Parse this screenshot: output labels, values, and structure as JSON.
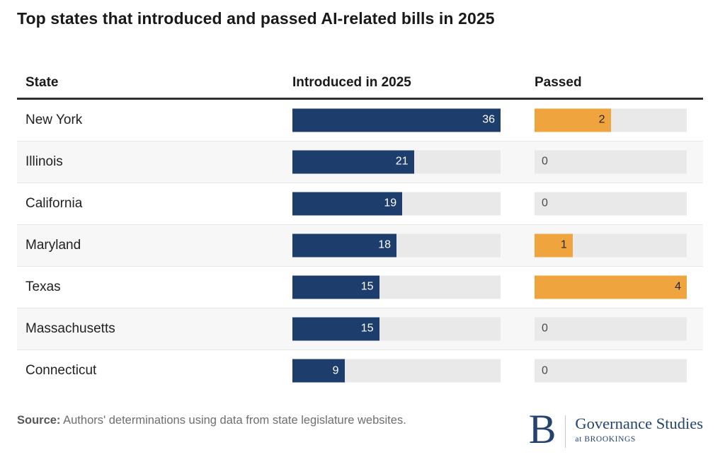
{
  "title": "Top states that introduced and passed AI-related bills in 2025",
  "table": {
    "headers": {
      "state": "State",
      "introduced": "Introduced in 2025",
      "passed": "Passed"
    }
  },
  "chart_data": {
    "type": "bar",
    "title": "Top states that introduced and passed AI-related bills in 2025",
    "categories": [
      "New York",
      "Illinois",
      "California",
      "Maryland",
      "Texas",
      "Massachusetts",
      "Connecticut"
    ],
    "series": [
      {
        "name": "Introduced in 2025",
        "values": [
          36,
          21,
          19,
          18,
          15,
          15,
          9
        ],
        "axis_max": 36,
        "color": "#1d3e6c",
        "label_color": "#ffffff"
      },
      {
        "name": "Passed",
        "values": [
          2,
          0,
          0,
          1,
          4,
          0,
          0
        ],
        "axis_max": 4,
        "color": "#f0a43e",
        "label_color": "#262626"
      }
    ],
    "layout": {
      "orientation": "horizontal",
      "value_labels": "inside-end",
      "zero_labels": "inside-start",
      "track_color": "#e9e9e9",
      "row_stripe_color": "#f7f7f7",
      "grid": false,
      "legend": false
    }
  },
  "source": {
    "label": "Source:",
    "text": "Authors' determinations using data from state legislature websites."
  },
  "logo": {
    "letter": "B",
    "program": "Governance Studies",
    "subtitle": "at BROOKINGS"
  }
}
